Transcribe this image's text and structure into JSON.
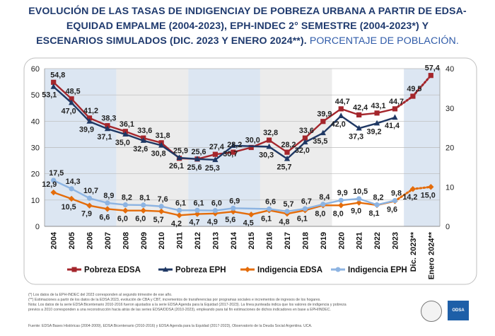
{
  "title": {
    "line1": "EVOLUCIÓN DE LAS TASAS DE INDIGENCIAY DE POBREZA URBANA A PARTIR DE EDSA-",
    "line2": "EQUIDAD EMPALME (2004-2023), EPH-INDEC 2°  SEMESTRE (2004-2023*) Y",
    "line3_bold": "ESCENARIOS SIMULADOS (DIC. 2023 Y ENERO 2024**).",
    "line3_normal": "PORCENTAJE DE POBLACIÓN."
  },
  "footnotes": {
    "n1": "(*) Los datos de la EPH-INDEC del 2023 corresponden al segundo trimestre de ese año.",
    "n2": "(**) Estimaciones a partir de los datos de la EDSA 2023, evolución de CBA y CBT, incrementos de transferencias por programas sociales e incrementos de ingresos  de los hogares.",
    "n3": "Nota: Los datos de la serie EDSA Bicentenario 2010-2016 fueron ajustados a la serie EDSA Agenda para la Equidad (2017-2023). La línea punteada indica que los valores de indigencia y pobreza",
    "n4": "previos a 2010 corresponden a una reconstrucción hacia atrás de las series EDSA/DDSA (2010-2023), empleando para tal fin estimaciones de dichos indicadores en base a EPH/INDEC.",
    "source": "Fuente: EDSA Bases Históricas (2004-2009), EDSA Bicentenario (2010-2016) y EDSA Agenda para la Equidad (2017-2023), Observatorio de la Deuda Social Argentina. UCA."
  },
  "logos": {
    "odsa": "ODSA"
  },
  "chart_data": {
    "type": "line",
    "categories": [
      "2004",
      "2005",
      "2006",
      "2007",
      "2008",
      "2009",
      "2010",
      "2011",
      "2012",
      "2013",
      "2014",
      "2015",
      "2016",
      "2017",
      "2018",
      "2019",
      "2020",
      "2021",
      "2022",
      "2023",
      "Dic. 2023**",
      "Enero 2024**"
    ],
    "y_left": {
      "min": 0,
      "max": 60,
      "ticks": [
        "0",
        "10",
        "20",
        "30",
        "40",
        "50",
        "60"
      ]
    },
    "y_right": {
      "min": 0,
      "max": 40,
      "ticks": [
        "0",
        "10",
        "20",
        "30",
        "40"
      ]
    },
    "grid": true,
    "legend_position": "bottom",
    "series": [
      {
        "name": "Pobreza EDSA",
        "color": "#a4262c",
        "values": [
          54.8,
          48.5,
          41.2,
          38.3,
          36.1,
          33.6,
          31.8,
          25.9,
          25.6,
          27.4,
          28.2,
          30.0,
          32.8,
          28.2,
          33.6,
          39.9,
          44.7,
          42.4,
          43.1,
          44.7,
          49.5,
          57.4
        ],
        "labels": [
          "54,8",
          "48,5",
          "41,2",
          "38,3",
          "36,1",
          "33,6",
          "31,8",
          "25,9",
          "25,6",
          "27,4",
          "28,2",
          "30,0",
          "32,8",
          "28,2",
          "33,6",
          "39,9",
          "44,7",
          "42,4",
          "43,1",
          "44,7",
          "49,5",
          "57,4"
        ]
      },
      {
        "name": "Pobreza EPH",
        "color": "#1f3864",
        "values": [
          53.1,
          47.0,
          39.9,
          37.1,
          35.0,
          32.6,
          30.8,
          26.1,
          25.6,
          25.3,
          30.7,
          null,
          30.3,
          25.7,
          32.0,
          35.5,
          42.0,
          37.3,
          39.2,
          41.4,
          null,
          null
        ],
        "labels": [
          "53,1",
          "47,0",
          "39,9",
          "37,1",
          "35,0",
          "32,6",
          "30,8",
          "26,1",
          "25,6",
          "25,3",
          "30,7",
          "",
          "30,3",
          "25,7",
          "32,0",
          "35,5",
          "42,0",
          "37,3",
          "39,2",
          "41,4",
          "",
          ""
        ]
      },
      {
        "name": "Indigencia EDSA",
        "color": "#e46c0a",
        "values": [
          12.9,
          10.5,
          7.9,
          6.6,
          6.0,
          6.0,
          5.7,
          4.2,
          4.7,
          4.9,
          5.6,
          4.5,
          6.1,
          4.8,
          6.1,
          8.0,
          8.0,
          9.0,
          8.1,
          9.6,
          14.2,
          15.0
        ],
        "labels": [
          "12,9",
          "10,5",
          "7,9",
          "6,6",
          "6,0",
          "6,0",
          "5,7",
          "4,2",
          "4,7",
          "4,9",
          "5,6",
          "4,5",
          "6,1",
          "4,8",
          "6,1",
          "8,0",
          "8,0",
          "9,0",
          "8,1",
          "9,6",
          "14,2",
          "15,0"
        ]
      },
      {
        "name": "Indigencia EPH",
        "color": "#8db4e2",
        "values": [
          17.5,
          14.3,
          10.7,
          8.9,
          8.2,
          8.1,
          7.6,
          6.1,
          6.1,
          6.0,
          6.9,
          null,
          6.6,
          5.7,
          6.7,
          8.4,
          9.9,
          10.5,
          8.2,
          9.8,
          null,
          null
        ],
        "labels": [
          "17,5",
          "14,3",
          "10,7",
          "8,9",
          "8,2",
          "8,1",
          "7,6",
          "6,1",
          "6,1",
          "6,0",
          "6,9",
          "",
          "6,6",
          "5,7",
          "6,7",
          "8,4",
          "9,9",
          "10,5",
          "8,2",
          "9,8",
          "",
          ""
        ]
      }
    ]
  }
}
